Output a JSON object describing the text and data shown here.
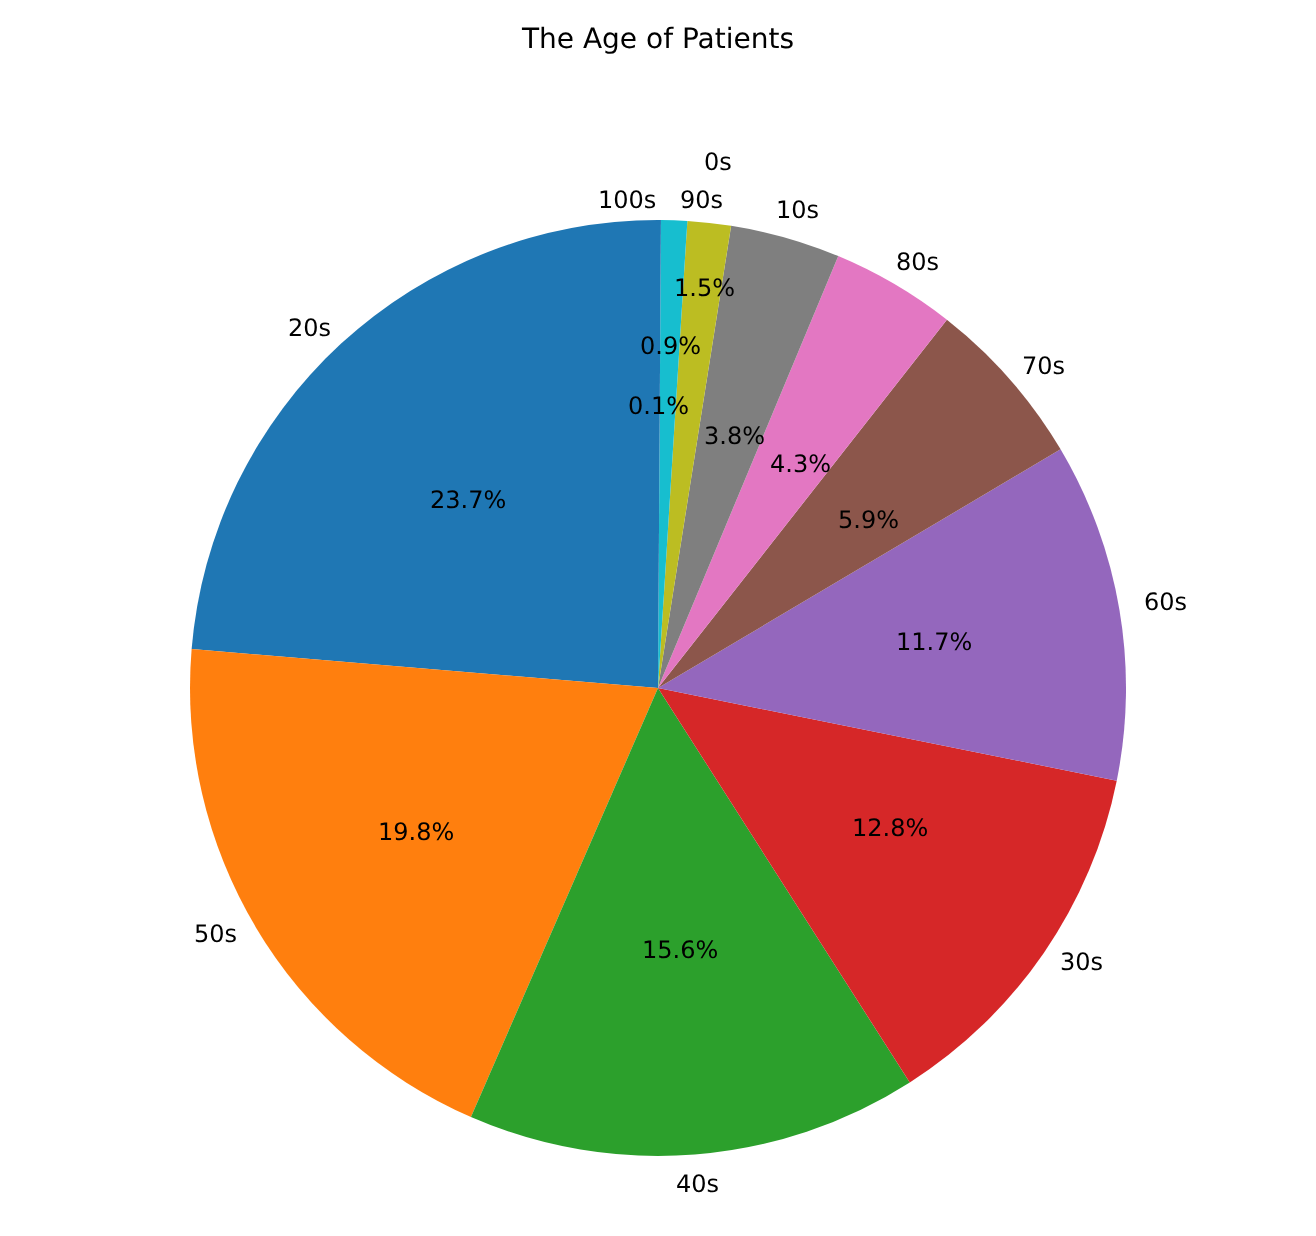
{
  "chart_data": {
    "type": "pie",
    "title": "The Age of Patients",
    "categories": [
      "20s",
      "50s",
      "40s",
      "30s",
      "60s",
      "70s",
      "80s",
      "10s",
      "0s",
      "90s",
      "100s"
    ],
    "values": [
      23.7,
      19.8,
      15.6,
      12.8,
      11.7,
      5.9,
      4.3,
      3.8,
      1.5,
      0.9,
      0.1
    ],
    "value_labels": [
      "23.7%",
      "19.8%",
      "15.6%",
      "12.8%",
      "11.7%",
      "5.9%",
      "4.3%",
      "3.8%",
      "1.5%",
      "0.9%",
      "0.1%"
    ],
    "colors": [
      "#1f77b4",
      "#ff7f0e",
      "#2ca02c",
      "#d62728",
      "#9467bd",
      "#8c564b",
      "#e377c2",
      "#7f7f7f",
      "#bcbd22",
      "#17becf",
      "#1f77b4"
    ],
    "data_labels": true,
    "legend": false
  }
}
